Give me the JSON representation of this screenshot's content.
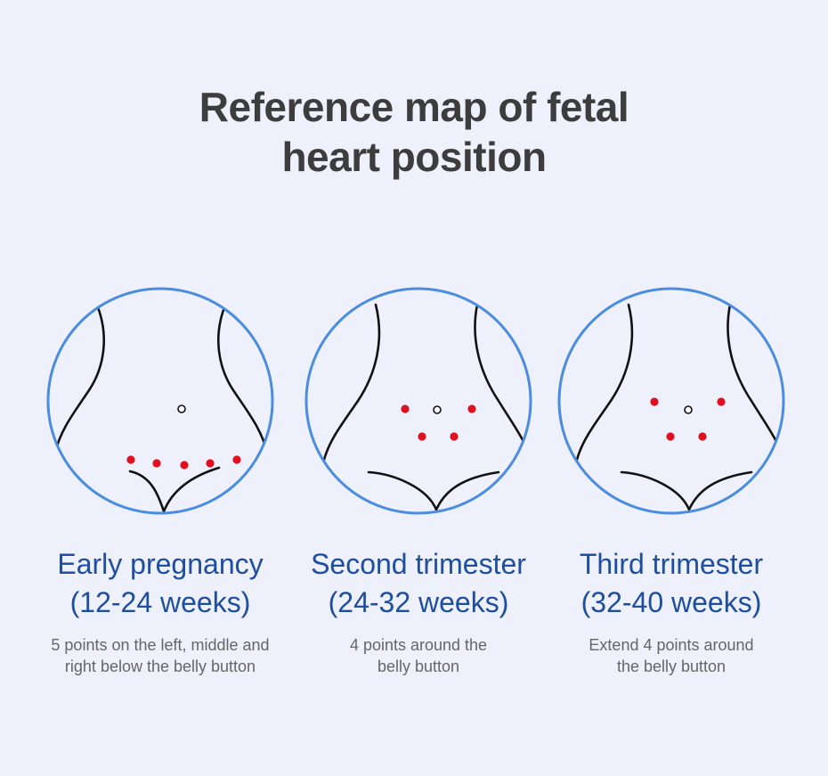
{
  "title": {
    "line1": "Reference map of fetal",
    "line2": "heart position"
  },
  "colors": {
    "background": "#eef1fb",
    "circle": "#4a8ce0",
    "point": "#e0101f",
    "title": "#3d3d3d",
    "stage": "#1d4ea0",
    "description": "#666666"
  },
  "stages": [
    {
      "name_line1": "Early pregnancy",
      "name_line2": "(12-24 weeks)",
      "desc_line1": "5 points on the left, middle and",
      "desc_line2": "right below the belly button",
      "point_count": 5
    },
    {
      "name_line1": "Second trimester",
      "name_line2": "(24-32 weeks)",
      "desc_line1": "4 points around the",
      "desc_line2": "belly button",
      "point_count": 4
    },
    {
      "name_line1": "Third trimester",
      "name_line2": "(32-40 weeks)",
      "desc_line1": "Extend 4 points around",
      "desc_line2": "the belly button",
      "point_count": 4
    }
  ]
}
